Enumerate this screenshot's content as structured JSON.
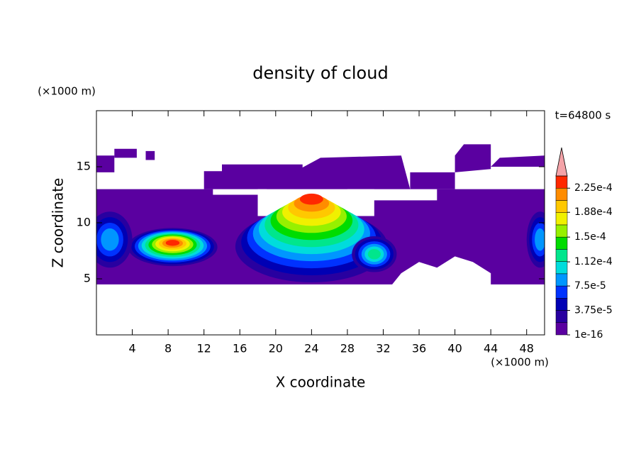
{
  "chart_data": {
    "type": "contour",
    "title": "density of cloud",
    "xlabel": "X coordinate",
    "ylabel": "Z coordinate",
    "xunit": "(×1000 m)",
    "yunit": "(×1000 m)",
    "time_label": "t=64800 s",
    "xlim": [
      0,
      50
    ],
    "ylim": [
      0,
      20
    ],
    "xticks": [
      4,
      8,
      12,
      16,
      20,
      24,
      28,
      32,
      36,
      40,
      44,
      48
    ],
    "yticks": [
      5,
      10,
      15
    ],
    "levels": [
      1e-16,
      1.875e-05,
      3.75e-05,
      5.625e-05,
      7.5e-05,
      9.375e-05,
      0.0001125,
      0.00013125,
      0.00015,
      0.00016875,
      0.0001875,
      0.00020625,
      0.000225,
      0.00024375
    ],
    "colors": [
      "#5a00a0",
      "#2800a0",
      "#0000b4",
      "#0032ff",
      "#0096ff",
      "#00dcdc",
      "#00e68c",
      "#00dc00",
      "#96f000",
      "#f0f000",
      "#ffc800",
      "#ff8c00",
      "#ff2800"
    ],
    "extend_color": "#f4a3a8",
    "colorbar_ticks": [
      {
        "value": 1e-16,
        "label": "1e-16"
      },
      {
        "value": 3.75e-05,
        "label": "3.75e-5"
      },
      {
        "value": 7.5e-05,
        "label": "7.5e-5"
      },
      {
        "value": 0.000112,
        "label": "1.12e-4"
      },
      {
        "value": 0.00015,
        "label": "1.5e-4"
      },
      {
        "value": 0.000188,
        "label": "1.88e-4"
      },
      {
        "value": 0.000225,
        "label": "2.25e-4"
      }
    ]
  }
}
